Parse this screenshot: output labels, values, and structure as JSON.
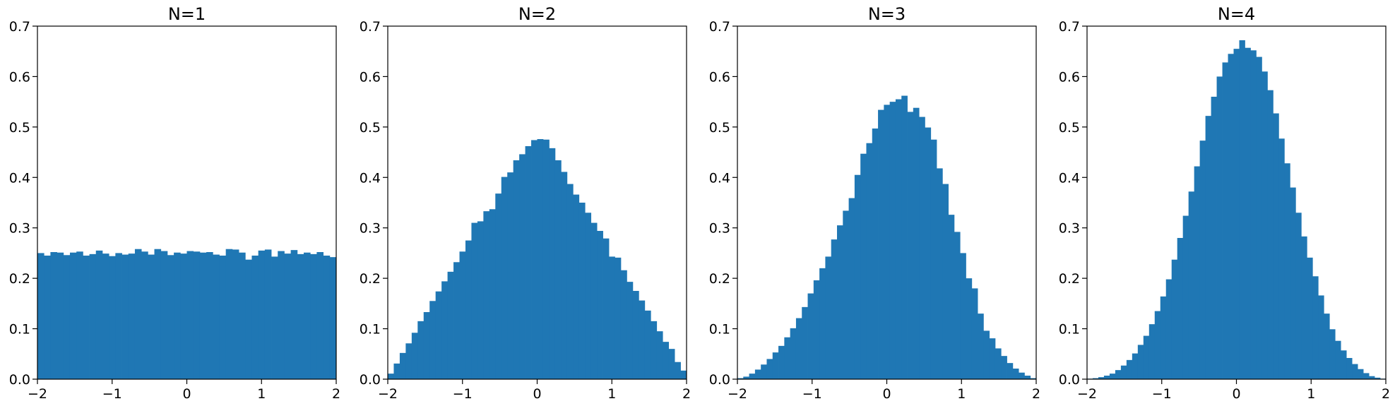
{
  "chart_data": [
    {
      "type": "bar",
      "title": "N=1",
      "xlabel": "",
      "ylabel": "",
      "xlim": [
        -2,
        2
      ],
      "ylim": [
        0,
        0.7
      ],
      "x_ticks": [
        -2,
        -1,
        0,
        1,
        2
      ],
      "x_tick_labels": [
        "−2",
        "−1",
        "0",
        "1",
        "2"
      ],
      "y_ticks": [
        0.0,
        0.1,
        0.2,
        0.3,
        0.4,
        0.5,
        0.6,
        0.7
      ],
      "y_tick_labels": [
        "0.0",
        "0.1",
        "0.2",
        "0.3",
        "0.4",
        "0.5",
        "0.6",
        "0.7"
      ],
      "bin_range": [
        -2,
        2
      ],
      "values": [
        0.25,
        0.245,
        0.252,
        0.251,
        0.246,
        0.251,
        0.253,
        0.245,
        0.248,
        0.255,
        0.249,
        0.244,
        0.25,
        0.247,
        0.249,
        0.258,
        0.253,
        0.247,
        0.258,
        0.254,
        0.246,
        0.251,
        0.249,
        0.254,
        0.253,
        0.251,
        0.252,
        0.247,
        0.245,
        0.258,
        0.257,
        0.251,
        0.237,
        0.245,
        0.255,
        0.257,
        0.243,
        0.254,
        0.249,
        0.256,
        0.248,
        0.251,
        0.248,
        0.252,
        0.245,
        0.242
      ]
    },
    {
      "type": "bar",
      "title": "N=2",
      "xlabel": "",
      "ylabel": "",
      "xlim": [
        -2,
        2
      ],
      "ylim": [
        0,
        0.7
      ],
      "x_ticks": [
        -2,
        -1,
        0,
        1,
        2
      ],
      "x_tick_labels": [
        "−2",
        "−1",
        "0",
        "1",
        "2"
      ],
      "y_ticks": [
        0.0,
        0.1,
        0.2,
        0.3,
        0.4,
        0.5,
        0.6,
        0.7
      ],
      "y_tick_labels": [
        "0.0",
        "0.1",
        "0.2",
        "0.3",
        "0.4",
        "0.5",
        "0.6",
        "0.7"
      ],
      "bin_range": [
        -2,
        2
      ],
      "values": [
        0.011,
        0.031,
        0.052,
        0.071,
        0.092,
        0.115,
        0.133,
        0.155,
        0.174,
        0.194,
        0.213,
        0.232,
        0.253,
        0.275,
        0.31,
        0.313,
        0.333,
        0.337,
        0.368,
        0.401,
        0.41,
        0.434,
        0.446,
        0.462,
        0.474,
        0.476,
        0.475,
        0.458,
        0.434,
        0.411,
        0.387,
        0.366,
        0.35,
        0.33,
        0.31,
        0.294,
        0.279,
        0.243,
        0.241,
        0.216,
        0.193,
        0.175,
        0.156,
        0.136,
        0.115,
        0.095,
        0.074,
        0.06,
        0.034,
        0.017
      ]
    },
    {
      "type": "bar",
      "title": "N=3",
      "xlabel": "",
      "ylabel": "",
      "xlim": [
        -2,
        2
      ],
      "ylim": [
        0,
        0.7
      ],
      "x_ticks": [
        -2,
        -1,
        0,
        1,
        2
      ],
      "x_tick_labels": [
        "−2",
        "−1",
        "0",
        "1",
        "2"
      ],
      "y_ticks": [
        0.0,
        0.1,
        0.2,
        0.3,
        0.4,
        0.5,
        0.6,
        0.7
      ],
      "y_tick_labels": [
        "0.0",
        "0.1",
        "0.2",
        "0.3",
        "0.4",
        "0.5",
        "0.6",
        "0.7"
      ],
      "bin_range": [
        -2,
        2
      ],
      "values": [
        0.002,
        0.005,
        0.011,
        0.019,
        0.029,
        0.04,
        0.053,
        0.066,
        0.083,
        0.101,
        0.121,
        0.143,
        0.17,
        0.196,
        0.22,
        0.243,
        0.277,
        0.305,
        0.334,
        0.359,
        0.405,
        0.447,
        0.468,
        0.497,
        0.534,
        0.544,
        0.55,
        0.555,
        0.562,
        0.53,
        0.538,
        0.52,
        0.499,
        0.475,
        0.418,
        0.387,
        0.326,
        0.292,
        0.25,
        0.2,
        0.18,
        0.13,
        0.096,
        0.081,
        0.061,
        0.046,
        0.032,
        0.021,
        0.013,
        0.007,
        0.002
      ]
    },
    {
      "type": "bar",
      "title": "N=4",
      "xlabel": "",
      "ylabel": "",
      "xlim": [
        -2,
        2
      ],
      "ylim": [
        0,
        0.7
      ],
      "x_ticks": [
        -2,
        -1,
        0,
        1,
        2
      ],
      "x_tick_labels": [
        "−2",
        "−1",
        "0",
        "1",
        "2"
      ],
      "y_ticks": [
        0.0,
        0.1,
        0.2,
        0.3,
        0.4,
        0.5,
        0.6,
        0.7
      ],
      "y_tick_labels": [
        "0.0",
        "0.1",
        "0.2",
        "0.3",
        "0.4",
        "0.5",
        "0.6",
        "0.7"
      ],
      "bin_range": [
        -2,
        2
      ],
      "values": [
        0.001,
        0.002,
        0.004,
        0.007,
        0.011,
        0.018,
        0.027,
        0.038,
        0.051,
        0.068,
        0.086,
        0.109,
        0.135,
        0.164,
        0.198,
        0.237,
        0.28,
        0.324,
        0.372,
        0.422,
        0.473,
        0.522,
        0.56,
        0.6,
        0.628,
        0.645,
        0.655,
        0.672,
        0.657,
        0.652,
        0.639,
        0.61,
        0.573,
        0.527,
        0.477,
        0.428,
        0.38,
        0.33,
        0.283,
        0.241,
        0.204,
        0.166,
        0.13,
        0.099,
        0.076,
        0.057,
        0.042,
        0.03,
        0.02,
        0.012,
        0.006,
        0.003,
        0.001
      ]
    }
  ],
  "colors": {
    "bar": "#1f77b4",
    "frame": "#000000"
  }
}
